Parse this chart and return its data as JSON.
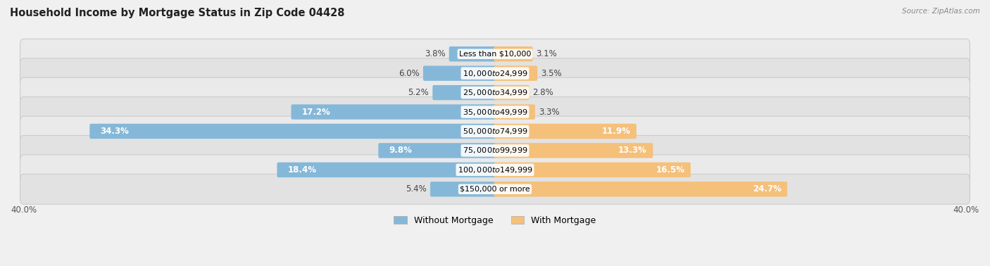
{
  "title": "Household Income by Mortgage Status in Zip Code 04428",
  "source": "Source: ZipAtlas.com",
  "categories": [
    "Less than $10,000",
    "$10,000 to $24,999",
    "$25,000 to $34,999",
    "$35,000 to $49,999",
    "$50,000 to $74,999",
    "$75,000 to $99,999",
    "$100,000 to $149,999",
    "$150,000 or more"
  ],
  "without_mortgage": [
    3.8,
    6.0,
    5.2,
    17.2,
    34.3,
    9.8,
    18.4,
    5.4
  ],
  "with_mortgage": [
    3.1,
    3.5,
    2.8,
    3.3,
    11.9,
    13.3,
    16.5,
    24.7
  ],
  "color_without": "#85b8d8",
  "color_with": "#f5c07a",
  "axis_limit": 40.0,
  "label_fontsize": 8.5,
  "title_fontsize": 10.5,
  "legend_fontsize": 9,
  "axis_label_fontsize": 8.5,
  "inside_label_threshold": 8.0,
  "row_colors": [
    "#eaeaea",
    "#e2e2e2"
  ]
}
